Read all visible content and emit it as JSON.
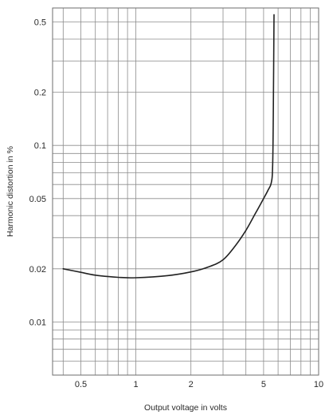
{
  "chart_data": {
    "type": "line",
    "title": "",
    "xlabel": "Output voltage in volts",
    "ylabel": "Harmonic distortion in %",
    "xscale": "log",
    "yscale": "log",
    "xlim": [
      0.35,
      10
    ],
    "ylim": [
      0.005,
      0.6
    ],
    "grid": true,
    "x_ticks": [
      {
        "value": 0.5,
        "label": "0.5"
      },
      {
        "value": 1,
        "label": "1"
      },
      {
        "value": 2,
        "label": "2"
      },
      {
        "value": 5,
        "label": "5"
      },
      {
        "value": 10,
        "label": "10"
      }
    ],
    "y_ticks": [
      {
        "value": 0.5,
        "label": "0.5"
      },
      {
        "value": 0.2,
        "label": "0.2"
      },
      {
        "value": 0.1,
        "label": "0.1"
      },
      {
        "value": 0.05,
        "label": "0.05"
      },
      {
        "value": 0.02,
        "label": "0.02"
      },
      {
        "value": 0.01,
        "label": "0.01"
      }
    ],
    "x_grid": [
      0.4,
      0.5,
      0.6,
      0.7,
      0.8,
      0.9,
      1,
      2,
      3,
      4,
      5,
      6,
      7,
      8,
      9,
      10
    ],
    "y_grid": [
      0.006,
      0.007,
      0.008,
      0.009,
      0.01,
      0.02,
      0.03,
      0.04,
      0.05,
      0.06,
      0.07,
      0.08,
      0.09,
      0.1,
      0.2,
      0.3,
      0.4,
      0.5
    ],
    "series": [
      {
        "color": "#222222",
        "x": [
          0.4,
          0.5,
          0.6,
          0.8,
          1.0,
          1.5,
          2.0,
          2.5,
          3.0,
          3.5,
          4.0,
          4.5,
          5.0,
          5.3,
          5.5,
          5.6,
          5.65,
          5.7
        ],
        "y": [
          0.02,
          0.0191,
          0.0184,
          0.0179,
          0.0178,
          0.0183,
          0.0192,
          0.0205,
          0.0225,
          0.027,
          0.033,
          0.041,
          0.05,
          0.056,
          0.061,
          0.075,
          0.15,
          0.55
        ]
      }
    ]
  }
}
